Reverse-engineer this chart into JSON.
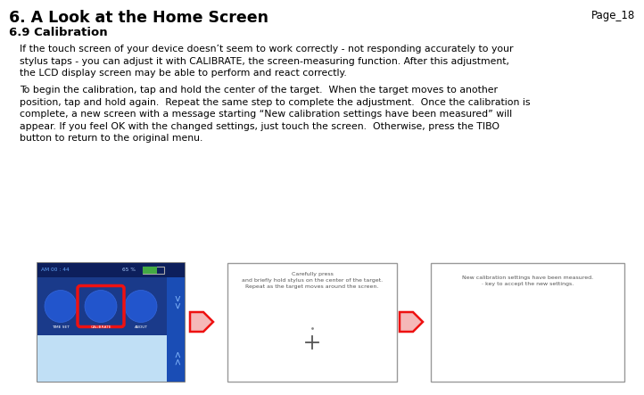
{
  "title": "6. A Look at the Home Screen",
  "page_num": "Page_18",
  "subtitle": "6.9 Calibration",
  "para1_line1": "If the touch screen of your device doesn’t seem to work correctly - not responding accurately to your",
  "para1_line2": "stylus taps - you can adjust it with CALIBRATE, the screen-measuring function. After this adjustment,",
  "para1_line3": "the LCD display screen may be able to perform and react correctly.",
  "para2_line1": "To begin the calibration, tap and hold the center of the target.  When the target moves to another",
  "para2_line2": "position, tap and hold again.  Repeat the same step to complete the adjustment.  Once the calibration is",
  "para2_line3": "complete, a new screen with a message starting “New calibration settings have been measured” will",
  "para2_line4": "appear. If you feel OK with the changed settings, just touch the screen.  Otherwise, press the TIBO",
  "para2_line5": "button to return to the original menu.",
  "screen2_line1": "Carefully press",
  "screen2_line2": "and briefly hold stylus on the center of the target.",
  "screen2_line3": "Repeat as the target moves around the screen.",
  "screen3_line1": "New calibration settings have been measured.",
  "screen3_line2": "· key to accept the new settings.",
  "bg_color": "#ffffff",
  "title_color": "#000000",
  "text_color": "#000000",
  "arrow_fill": "#f5b8b8",
  "arrow_edge": "#ee1111",
  "screen_header_bg": "#1a3a8a",
  "screen_header_text": "#4499ff",
  "screen_icon_bg": "#1a3a8a",
  "screen_nav_bg": "#2255aa",
  "screen_bottom_bg": "#b8d8f0",
  "screen_border": "#666666"
}
